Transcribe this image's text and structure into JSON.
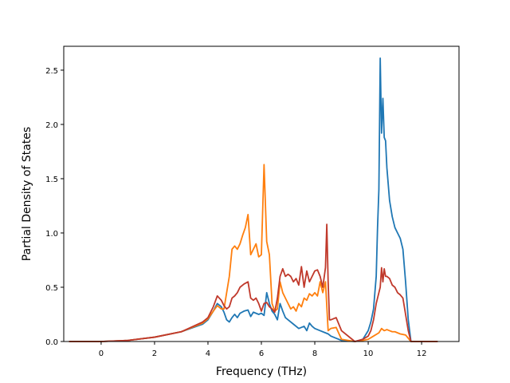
{
  "chart_data": {
    "type": "line",
    "title": "",
    "xlabel": "Frequency (THz)",
    "ylabel": "Partial Density of States",
    "xlim": [
      -1.4,
      13.4
    ],
    "ylim": [
      0,
      2.72
    ],
    "xticks": [
      0,
      2,
      4,
      6,
      8,
      10,
      12
    ],
    "yticks": [
      0.0,
      0.5,
      1.0,
      1.5,
      2.0,
      2.5
    ],
    "grid": false,
    "legend": "none",
    "series": [
      {
        "color": "#1f77b4",
        "x": [
          -1.2,
          0,
          1,
          2,
          3,
          3.8,
          4.0,
          4.2,
          4.35,
          4.5,
          4.6,
          4.7,
          4.8,
          4.9,
          5.0,
          5.1,
          5.2,
          5.35,
          5.5,
          5.6,
          5.7,
          5.8,
          5.9,
          6.0,
          6.1,
          6.2,
          6.3,
          6.4,
          6.5,
          6.6,
          6.7,
          6.8,
          6.9,
          7.0,
          7.2,
          7.4,
          7.6,
          7.7,
          7.8,
          7.9,
          8.0,
          8.2,
          8.4,
          8.5,
          8.6,
          8.8,
          9.0,
          9.5,
          9.8,
          10.0,
          10.1,
          10.2,
          10.3,
          10.35,
          10.4,
          10.45,
          10.5,
          10.55,
          10.6,
          10.65,
          10.7,
          10.8,
          10.9,
          11.0,
          11.1,
          11.2,
          11.3,
          11.4,
          11.5,
          11.6,
          12.0,
          12.6
        ],
        "y": [
          0,
          0,
          0.01,
          0.04,
          0.09,
          0.16,
          0.2,
          0.28,
          0.35,
          0.32,
          0.27,
          0.2,
          0.18,
          0.22,
          0.25,
          0.22,
          0.26,
          0.28,
          0.29,
          0.23,
          0.27,
          0.26,
          0.25,
          0.26,
          0.24,
          0.45,
          0.35,
          0.28,
          0.25,
          0.2,
          0.35,
          0.28,
          0.22,
          0.2,
          0.16,
          0.12,
          0.14,
          0.1,
          0.17,
          0.14,
          0.12,
          0.1,
          0.08,
          0.07,
          0.05,
          0.03,
          0.01,
          0,
          0.02,
          0.1,
          0.18,
          0.3,
          0.6,
          1.05,
          1.4,
          2.61,
          1.92,
          2.24,
          1.88,
          1.85,
          1.6,
          1.3,
          1.15,
          1.05,
          1.0,
          0.95,
          0.85,
          0.55,
          0.2,
          0,
          0,
          0
        ]
      },
      {
        "color": "#ff7f0e",
        "x": [
          -1.2,
          0,
          1,
          2,
          3,
          3.8,
          4.0,
          4.2,
          4.35,
          4.5,
          4.6,
          4.7,
          4.8,
          4.9,
          5.0,
          5.1,
          5.2,
          5.3,
          5.4,
          5.5,
          5.6,
          5.7,
          5.8,
          5.9,
          6.0,
          6.1,
          6.2,
          6.3,
          6.4,
          6.5,
          6.6,
          6.7,
          6.8,
          6.9,
          7.0,
          7.1,
          7.2,
          7.3,
          7.4,
          7.5,
          7.6,
          7.7,
          7.8,
          7.9,
          8.0,
          8.1,
          8.2,
          8.3,
          8.4,
          8.5,
          8.6,
          8.8,
          9.0,
          9.5,
          9.8,
          10.0,
          10.2,
          10.4,
          10.5,
          10.6,
          10.7,
          10.8,
          10.9,
          11.0,
          11.2,
          11.4,
          11.6,
          12.0,
          12.6
        ],
        "y": [
          0,
          0,
          0.01,
          0.04,
          0.09,
          0.17,
          0.21,
          0.28,
          0.33,
          0.3,
          0.3,
          0.45,
          0.6,
          0.85,
          0.88,
          0.85,
          0.9,
          0.98,
          1.05,
          1.17,
          0.8,
          0.85,
          0.9,
          0.78,
          0.8,
          1.63,
          0.92,
          0.8,
          0.35,
          0.28,
          0.3,
          0.55,
          0.45,
          0.4,
          0.35,
          0.3,
          0.32,
          0.28,
          0.35,
          0.32,
          0.4,
          0.38,
          0.44,
          0.42,
          0.45,
          0.42,
          0.55,
          0.45,
          0.55,
          0.1,
          0.12,
          0.13,
          0.02,
          0,
          0.01,
          0.02,
          0.05,
          0.08,
          0.12,
          0.1,
          0.11,
          0.1,
          0.09,
          0.09,
          0.07,
          0.06,
          0,
          0,
          0
        ]
      },
      {
        "color": "#c0392b",
        "x": [
          -1.2,
          0,
          1,
          2,
          3,
          3.8,
          4.0,
          4.2,
          4.35,
          4.5,
          4.6,
          4.7,
          4.8,
          4.9,
          5.0,
          5.1,
          5.2,
          5.35,
          5.5,
          5.6,
          5.7,
          5.8,
          5.9,
          6.0,
          6.1,
          6.2,
          6.3,
          6.4,
          6.5,
          6.6,
          6.7,
          6.8,
          6.9,
          7.0,
          7.1,
          7.2,
          7.3,
          7.4,
          7.5,
          7.6,
          7.7,
          7.8,
          7.9,
          8.0,
          8.1,
          8.2,
          8.3,
          8.4,
          8.45,
          8.5,
          8.55,
          8.6,
          8.7,
          8.8,
          9.0,
          9.5,
          9.8,
          10.0,
          10.1,
          10.2,
          10.3,
          10.4,
          10.45,
          10.5,
          10.55,
          10.6,
          10.65,
          10.7,
          10.8,
          10.9,
          11.0,
          11.1,
          11.2,
          11.3,
          11.4,
          11.5,
          11.6,
          12.0,
          12.6
        ],
        "y": [
          0,
          0,
          0.01,
          0.04,
          0.09,
          0.18,
          0.22,
          0.32,
          0.42,
          0.38,
          0.33,
          0.3,
          0.32,
          0.4,
          0.42,
          0.45,
          0.5,
          0.53,
          0.55,
          0.4,
          0.38,
          0.4,
          0.35,
          0.28,
          0.35,
          0.36,
          0.32,
          0.3,
          0.27,
          0.4,
          0.6,
          0.67,
          0.6,
          0.62,
          0.6,
          0.55,
          0.58,
          0.52,
          0.69,
          0.5,
          0.65,
          0.55,
          0.6,
          0.65,
          0.66,
          0.6,
          0.5,
          0.68,
          1.08,
          0.55,
          0.2,
          0.2,
          0.21,
          0.22,
          0.1,
          0,
          0.02,
          0.05,
          0.1,
          0.2,
          0.35,
          0.45,
          0.5,
          0.68,
          0.55,
          0.67,
          0.6,
          0.6,
          0.58,
          0.52,
          0.5,
          0.45,
          0.43,
          0.4,
          0.25,
          0.1,
          0,
          0,
          0
        ]
      }
    ]
  }
}
